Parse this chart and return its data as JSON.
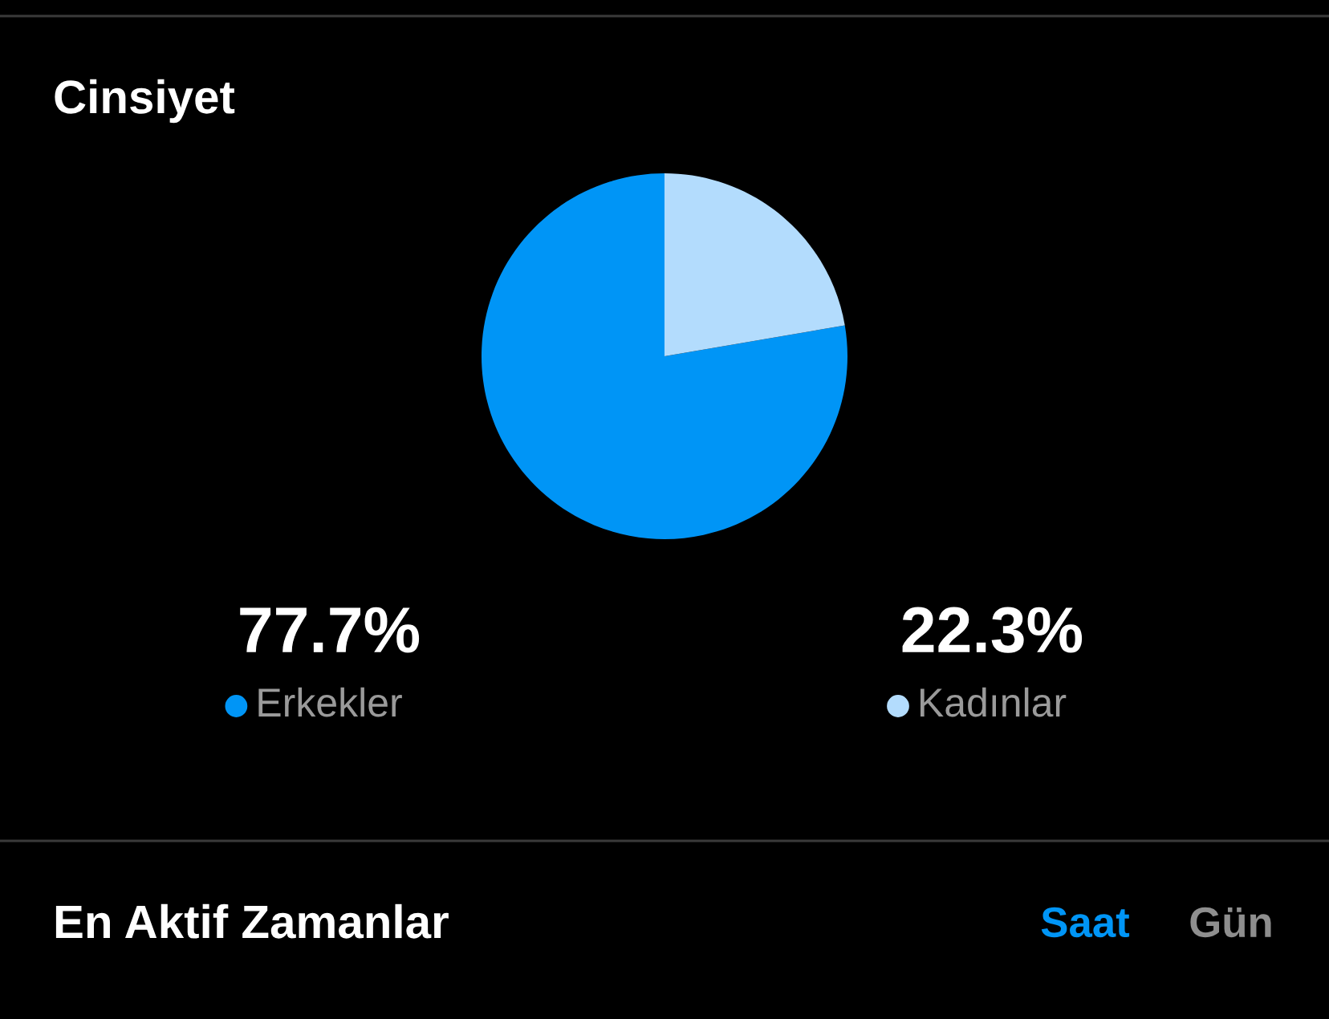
{
  "chart_data": [
    {
      "type": "pie",
      "title": "Cinsiyet",
      "categories": [
        "Erkekler",
        "Kadınlar"
      ],
      "values": [
        77.7,
        22.3
      ],
      "colors": [
        "#0095f6",
        "#b3dcfd"
      ],
      "value_labels": [
        "77.7%",
        "22.3%"
      ],
      "legend": "bottom"
    },
    {
      "type": "other",
      "title": "En Aktif Zamanlar",
      "annotations": [
        "Saat",
        "Gün"
      ]
    }
  ]
}
